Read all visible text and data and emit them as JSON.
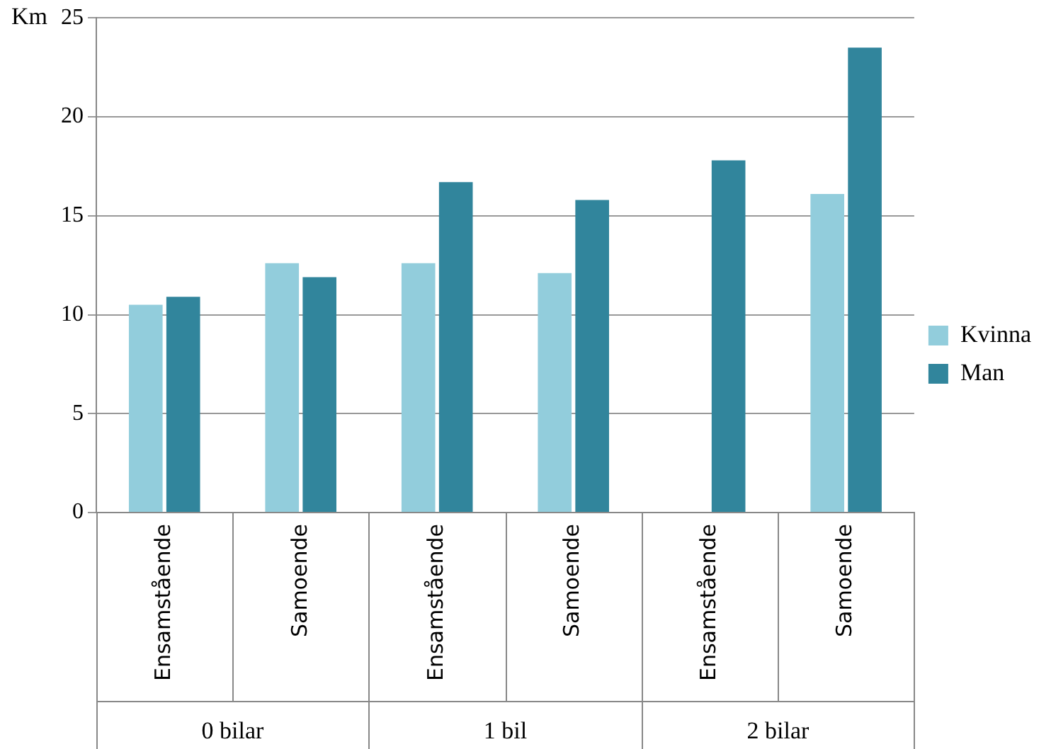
{
  "chart_data": {
    "type": "bar",
    "ylabel": "Km",
    "categories": [
      "Ensamstående",
      "Samoende",
      "Ensamstående",
      "Samoende",
      "Ensamstående",
      "Samoende"
    ],
    "annotations": [
      "0 bilar",
      "1 bil",
      "2 bilar"
    ],
    "series": [
      {
        "name": "Kvinna",
        "color": "#92cddc",
        "values": [
          10.5,
          12.6,
          12.6,
          12.1,
          null,
          16.1
        ]
      },
      {
        "name": "Man",
        "color": "#31859c",
        "values": [
          10.9,
          11.9,
          16.7,
          15.8,
          17.8,
          23.5
        ]
      }
    ],
    "ylim": [
      0,
      25
    ],
    "yticks": [
      0,
      5,
      10,
      15,
      20,
      25
    ],
    "grid": "y",
    "legend": "right"
  }
}
